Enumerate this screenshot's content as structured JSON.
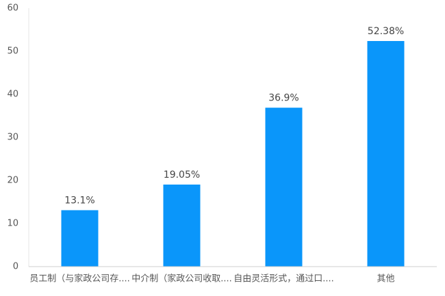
{
  "chart_data": {
    "type": "bar",
    "categories": [
      "员工制（与家政公司存....",
      "中介制（家政公司收取....",
      "自由灵活形式，通过口....",
      "其他"
    ],
    "values": [
      13.1,
      19.05,
      36.9,
      52.38
    ],
    "value_labels": [
      "13.1%",
      "19.05%",
      "36.9%",
      "52.38%"
    ],
    "color": "#0a96fa",
    "ylim": [
      0,
      60
    ],
    "yticks": [
      0,
      10,
      20,
      30,
      40,
      50,
      60
    ],
    "grid": false
  }
}
